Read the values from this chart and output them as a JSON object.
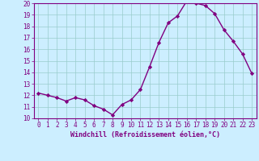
{
  "x": [
    0,
    1,
    2,
    3,
    4,
    5,
    6,
    7,
    8,
    9,
    10,
    11,
    12,
    13,
    14,
    15,
    16,
    17,
    18,
    19,
    20,
    21,
    22,
    23
  ],
  "y": [
    12.2,
    12.0,
    11.8,
    11.5,
    11.8,
    11.6,
    11.1,
    10.8,
    10.3,
    11.2,
    11.6,
    12.5,
    14.5,
    16.6,
    18.3,
    18.9,
    20.2,
    20.0,
    19.8,
    19.1,
    17.7,
    16.7,
    15.6,
    13.9
  ],
  "line_color": "#800080",
  "marker": "D",
  "marker_size": 2.2,
  "linewidth": 1.0,
  "bg_color": "#cceeff",
  "grid_color": "#99cccc",
  "xlabel": "Windchill (Refroidissement éolien,°C)",
  "xlabel_color": "#800080",
  "tick_color": "#800080",
  "label_color": "#800080",
  "ylim": [
    10,
    20
  ],
  "xlim": [
    -0.5,
    23.5
  ],
  "yticks": [
    10,
    11,
    12,
    13,
    14,
    15,
    16,
    17,
    18,
    19,
    20
  ],
  "xticks": [
    0,
    1,
    2,
    3,
    4,
    5,
    6,
    7,
    8,
    9,
    10,
    11,
    12,
    13,
    14,
    15,
    16,
    17,
    18,
    19,
    20,
    21,
    22,
    23
  ],
  "tick_fontsize": 5.5,
  "xlabel_fontsize": 6.0
}
